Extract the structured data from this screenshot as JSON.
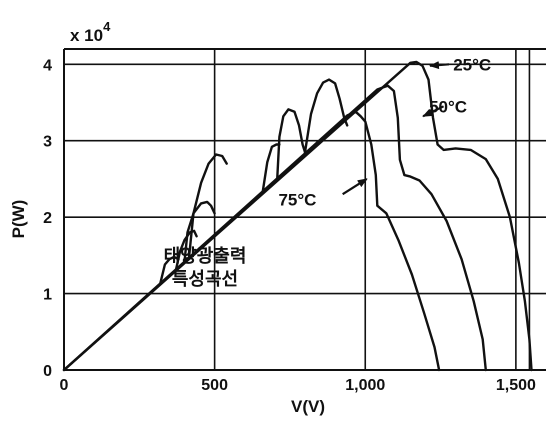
{
  "chart_data": {
    "type": "line",
    "title": "",
    "xlabel": "V(V)",
    "ylabel": "P(W)",
    "multiplier": {
      "base": "x 10",
      "exponent": "4"
    },
    "xlim": [
      0,
      1600
    ],
    "ylim": [
      0,
      4.2
    ],
    "xticks": [
      {
        "value": 0,
        "label": "0"
      },
      {
        "value": 500,
        "label": "500"
      },
      {
        "value": 1000,
        "label": "1,000"
      },
      {
        "value": 1500,
        "label": "1,500"
      }
    ],
    "yticks": [
      {
        "value": 0,
        "label": "0"
      },
      {
        "value": 1,
        "label": "1"
      },
      {
        "value": 2,
        "label": "2"
      },
      {
        "value": 3,
        "label": "3"
      },
      {
        "value": 4,
        "label": "4"
      }
    ],
    "extra_vlines": [
      1545
    ],
    "grid": true,
    "annotation": [
      "태양광출력",
      "특성곡선"
    ],
    "series": [
      {
        "name": "25°C",
        "points": [
          [
            0,
            0
          ],
          [
            1150,
            4.02
          ],
          [
            1170,
            4.03
          ],
          [
            1190,
            3.98
          ],
          [
            1210,
            3.8
          ],
          [
            1225,
            3.3
          ],
          [
            1240,
            2.95
          ],
          [
            1260,
            2.88
          ],
          [
            1300,
            2.9
          ],
          [
            1350,
            2.88
          ],
          [
            1400,
            2.76
          ],
          [
            1440,
            2.5
          ],
          [
            1480,
            2.0
          ],
          [
            1510,
            1.4
          ],
          [
            1530,
            0.9
          ],
          [
            1545,
            0.4
          ],
          [
            1552,
            0
          ]
        ]
      },
      {
        "name": "50°C",
        "points": [
          [
            0,
            0
          ],
          [
            1040,
            3.67
          ],
          [
            1075,
            3.72
          ],
          [
            1095,
            3.65
          ],
          [
            1108,
            3.3
          ],
          [
            1115,
            2.75
          ],
          [
            1130,
            2.55
          ],
          [
            1150,
            2.53
          ],
          [
            1180,
            2.48
          ],
          [
            1220,
            2.3
          ],
          [
            1270,
            1.95
          ],
          [
            1320,
            1.45
          ],
          [
            1360,
            0.9
          ],
          [
            1390,
            0.4
          ],
          [
            1400,
            0
          ]
        ]
      },
      {
        "name": "75°C",
        "points": [
          [
            0,
            0
          ],
          [
            940,
            3.33
          ],
          [
            968,
            3.38
          ],
          [
            985,
            3.32
          ],
          [
            1000,
            3.25
          ],
          [
            1020,
            2.95
          ],
          [
            1035,
            2.55
          ],
          [
            1040,
            2.15
          ],
          [
            1070,
            2.05
          ],
          [
            1110,
            1.7
          ],
          [
            1155,
            1.25
          ],
          [
            1195,
            0.75
          ],
          [
            1230,
            0.3
          ],
          [
            1245,
            0
          ]
        ]
      },
      {
        "name": "",
        "points": [
          [
            800,
            2.85
          ],
          [
            820,
            3.35
          ],
          [
            840,
            3.62
          ],
          [
            860,
            3.76
          ],
          [
            880,
            3.8
          ],
          [
            900,
            3.75
          ],
          [
            915,
            3.55
          ],
          [
            930,
            3.3
          ],
          [
            940,
            3.2
          ]
        ]
      },
      {
        "name": "",
        "points": [
          [
            708,
            2.52
          ],
          [
            715,
            3.05
          ],
          [
            728,
            3.32
          ],
          [
            745,
            3.41
          ],
          [
            765,
            3.38
          ],
          [
            780,
            3.2
          ],
          [
            792,
            2.95
          ],
          [
            800,
            2.85
          ]
        ]
      },
      {
        "name": "",
        "points": [
          [
            660,
            2.34
          ],
          [
            675,
            2.72
          ],
          [
            690,
            2.92
          ],
          [
            705,
            2.95
          ],
          [
            715,
            2.95
          ]
        ]
      },
      {
        "name": "",
        "points": [
          [
            400,
            1.42
          ],
          [
            410,
            1.8
          ],
          [
            430,
            2.05
          ],
          [
            455,
            2.18
          ],
          [
            475,
            2.2
          ],
          [
            488,
            2.15
          ],
          [
            500,
            2.05
          ]
        ]
      },
      {
        "name": "",
        "points": [
          [
            415,
            1.47
          ],
          [
            430,
            2.05
          ],
          [
            455,
            2.45
          ],
          [
            480,
            2.7
          ],
          [
            505,
            2.82
          ],
          [
            525,
            2.8
          ],
          [
            540,
            2.7
          ]
        ]
      },
      {
        "name": "",
        "points": [
          [
            320,
            1.14
          ],
          [
            335,
            1.38
          ],
          [
            350,
            1.45
          ],
          [
            365,
            1.48
          ],
          [
            380,
            1.45
          ]
        ]
      },
      {
        "name": "",
        "points": [
          [
            372,
            1.32
          ],
          [
            385,
            1.55
          ],
          [
            400,
            1.7
          ],
          [
            418,
            1.8
          ],
          [
            432,
            1.82
          ],
          [
            440,
            1.75
          ]
        ]
      }
    ],
    "callouts": [
      {
        "label": "25°C",
        "text": [
          1355,
          4.0
        ],
        "arrow_from": [
          1278,
          4.0
        ],
        "arrow_to": [
          1215,
          3.98
        ]
      },
      {
        "label": "50°C",
        "text": [
          1275,
          3.45
        ],
        "arrow_from": [
          1260,
          3.45
        ],
        "arrow_to": [
          1192,
          3.32
        ]
      },
      {
        "label": "75°C",
        "text": [
          775,
          2.23
        ],
        "arrow_from": [
          925,
          2.3
        ],
        "arrow_to": [
          1005,
          2.5
        ]
      }
    ]
  }
}
